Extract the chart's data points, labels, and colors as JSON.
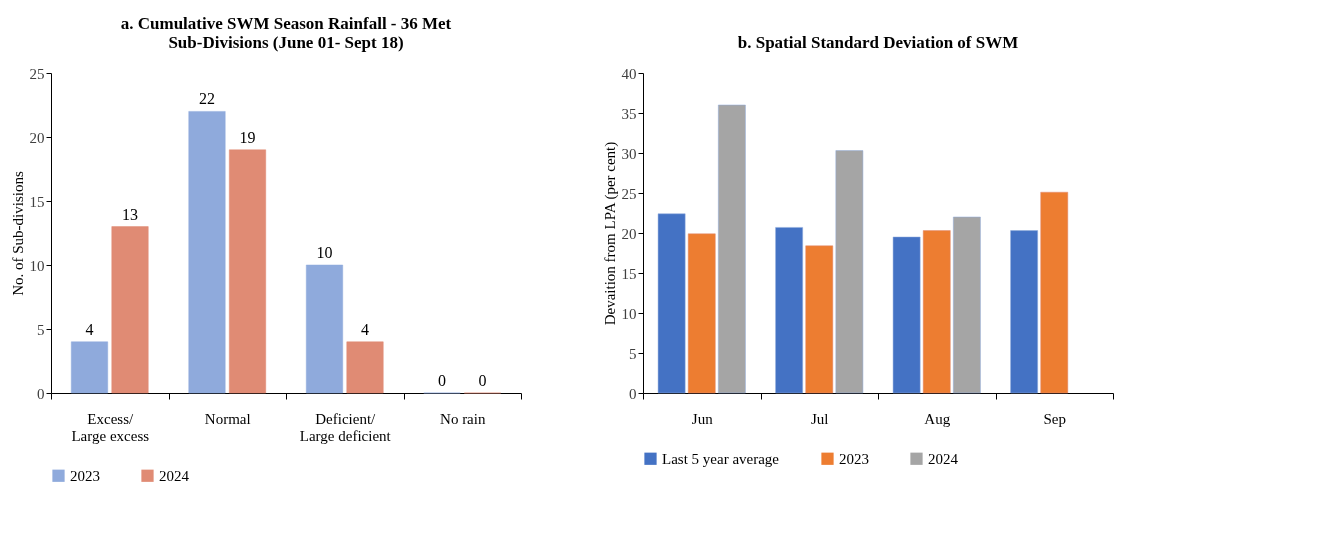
{
  "chart_data": [
    {
      "type": "bar",
      "title": "a. Cumulative SWM Season Rainfall - 36 Met\nSub-Divisions (June 01- Sept 18)",
      "ylabel": "No. of Sub-divisions",
      "categories": [
        "Excess/\nLarge excess",
        "Normal",
        "Deficient/\nLarge deficient",
        "No rain"
      ],
      "series": [
        {
          "name": "2023",
          "color": "#8faadc",
          "values": [
            4,
            22,
            10,
            0
          ]
        },
        {
          "name": "2024",
          "color": "#e08b74",
          "values": [
            13,
            19,
            4,
            0
          ]
        }
      ],
      "ylim": [
        0,
        25
      ],
      "yticks": [
        0,
        5,
        10,
        15,
        20,
        25
      ],
      "data_labels": true,
      "grid": false,
      "legend": "bottom"
    },
    {
      "type": "bar",
      "title": "b. Spatial Standard Deviation of SWM",
      "ylabel": "Devaition from LPA (per cent)",
      "categories": [
        "Jun",
        "Jul",
        "Aug",
        "Sep"
      ],
      "series": [
        {
          "name": "Last 5 year average",
          "color": "#4472c4",
          "values": [
            22.4,
            20.7,
            19.5,
            20.3
          ]
        },
        {
          "name": "2023",
          "color": "#ed7d31",
          "values": [
            19.9,
            18.4,
            20.3,
            25.1
          ]
        },
        {
          "name": "2024",
          "color": "#a5a5a5",
          "values": [
            36.0,
            30.3,
            22.0,
            null
          ]
        }
      ],
      "ylim": [
        0,
        40
      ],
      "yticks": [
        0,
        5,
        10,
        15,
        20,
        25,
        30,
        35,
        40
      ],
      "grid": false,
      "legend": "bottom"
    }
  ]
}
